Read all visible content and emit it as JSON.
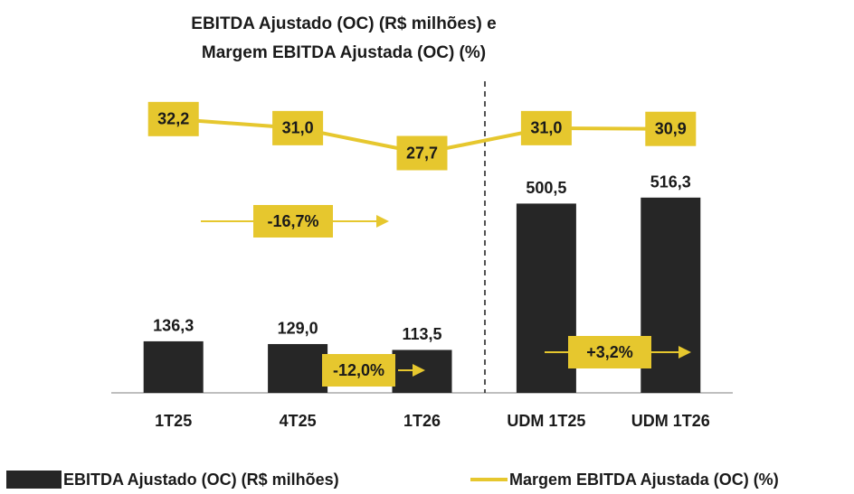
{
  "chart_data": {
    "type": "bar-line",
    "title": [
      "EBITDA Ajustado (OC) (R$ milhões) e",
      "Margem EBITDA Ajustada (OC) (%)"
    ],
    "categories": [
      "1T25",
      "4T25",
      "1T26",
      "UDM 1T25",
      "UDM 1T26"
    ],
    "series": [
      {
        "name": "EBITDA Ajustado (OC) (R$ milhões)",
        "type": "bar",
        "color": "#262626",
        "values": [
          136.3,
          129.0,
          113.5,
          500.5,
          516.3
        ],
        "value_labels": [
          "136,3",
          "129,0",
          "113,5",
          "500,5",
          "516,3"
        ]
      },
      {
        "name": "Margem EBITDA Ajustada (OC) (%)",
        "type": "line",
        "axis": "y2",
        "color": "#e6c72e",
        "values": [
          32.2,
          31.0,
          27.7,
          31.0,
          30.9
        ],
        "value_labels": [
          "32,2",
          "31,0",
          "27,7",
          "31,0",
          "30,9"
        ]
      }
    ],
    "ylim": [
      0,
      800
    ],
    "y2lim": [
      -4,
      36
    ],
    "annotations": [
      "-16,7%",
      "-12,0%",
      "+3,2%"
    ],
    "legend": "bottom"
  }
}
